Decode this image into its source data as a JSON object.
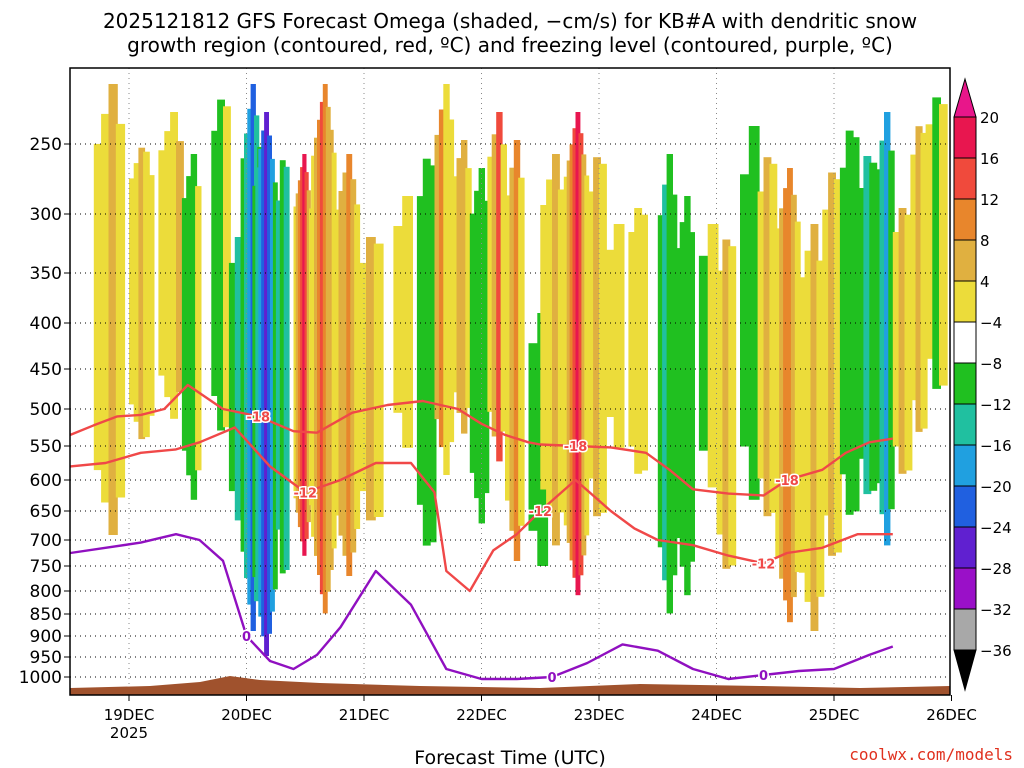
{
  "chart_data": {
    "type": "heatmap",
    "title_line1": "2025121812 GFS Forecast Omega (shaded, −cm/s) for KB#A with dendritic snow",
    "title_line2": "growth region (contoured, red, ºC) and freezing level (contoured, purple, ºC)",
    "xlabel": "Forecast Time (UTC)",
    "year_label": "2025",
    "credit": "coolwx.com/models",
    "x_ticks": [
      "19DEC",
      "20DEC",
      "21DEC",
      "22DEC",
      "23DEC",
      "24DEC",
      "25DEC",
      "26DEC"
    ],
    "y_ticks": [
      250,
      300,
      350,
      400,
      450,
      500,
      550,
      600,
      650,
      700,
      750,
      800,
      850,
      900,
      950,
      1000
    ],
    "y_range": [
      200,
      1030
    ],
    "colorbar_labels": [
      "20",
      "16",
      "12",
      "8",
      "4",
      "−4",
      "−8",
      "−12",
      "−16",
      "−20",
      "−24",
      "−28",
      "−32",
      "−36"
    ],
    "colorbar_colors": [
      "#e8164f",
      "#f04a3c",
      "#e8862c",
      "#e0b040",
      "#ecdc3a",
      "#ffffff",
      "#20c020",
      "#20c0a0",
      "#20a0e0",
      "#2060e0",
      "#6020d0",
      "#9a10c8",
      "#a8a8a8"
    ],
    "series": [
      {
        "name": "-18 ºC isotherm",
        "color": "#f04848",
        "label": "-18",
        "x": [
          0.0,
          0.2,
          0.4,
          0.6,
          0.8,
          1.0,
          1.3,
          1.6,
          1.9,
          2.1,
          2.4,
          2.7,
          3.0,
          3.3,
          3.5,
          3.7,
          3.9,
          4.0,
          4.3,
          4.6,
          4.9,
          5.1,
          5.3,
          5.6,
          5.9,
          6.1,
          6.4,
          6.6,
          6.8,
          7.0
        ],
        "y": [
          535,
          522,
          510,
          508,
          500,
          470,
          500,
          510,
          530,
          532,
          505,
          495,
          490,
          500,
          520,
          535,
          545,
          548,
          550,
          552,
          560,
          585,
          615,
          622,
          625,
          600,
          585,
          560,
          545,
          540
        ]
      },
      {
        "name": "-12 ºC isotherm",
        "color": "#f04848",
        "label": "-12",
        "x": [
          0.0,
          0.3,
          0.6,
          0.9,
          1.1,
          1.4,
          1.7,
          2.0,
          2.3,
          2.6,
          2.9,
          3.1,
          3.2,
          3.4,
          3.6,
          3.8,
          4.0,
          4.3,
          4.6,
          4.8,
          5.0,
          5.3,
          5.6,
          5.9,
          6.1,
          6.4,
          6.7,
          7.0
        ],
        "y": [
          580,
          575,
          560,
          555,
          545,
          525,
          580,
          620,
          600,
          575,
          575,
          620,
          760,
          800,
          720,
          690,
          650,
          600,
          650,
          680,
          700,
          710,
          730,
          745,
          725,
          715,
          690,
          690
        ]
      },
      {
        "name": "0 ºC freezing level",
        "color": "#9010c0",
        "label": "0",
        "x": [
          0.0,
          0.3,
          0.6,
          0.9,
          1.1,
          1.3,
          1.5,
          1.7,
          1.9,
          2.1,
          2.3,
          2.6,
          2.9,
          3.2,
          3.5,
          3.8,
          4.1,
          4.4,
          4.7,
          5.0,
          5.3,
          5.6,
          5.9,
          6.2,
          6.5,
          6.8,
          7.0
        ],
        "y": [
          725,
          715,
          705,
          690,
          700,
          740,
          900,
          960,
          980,
          945,
          880,
          760,
          830,
          980,
          1005,
          1005,
          1000,
          965,
          920,
          935,
          980,
          1005,
          995,
          985,
          980,
          945,
          925
        ]
      }
    ]
  }
}
